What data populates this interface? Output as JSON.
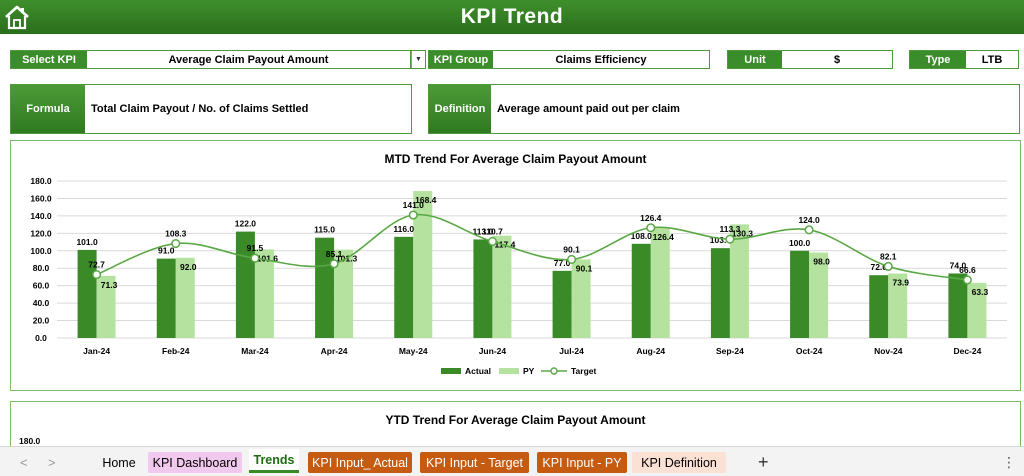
{
  "header": {
    "title": "KPI Trend",
    "home_icon": "home-icon"
  },
  "selectors": {
    "kpi_label": "Select KPI",
    "kpi_value": "Average Claim Payout Amount",
    "group_label": "KPI Group",
    "group_value": "Claims Efficiency",
    "unit_label": "Unit",
    "unit_value": "$",
    "type_label": "Type",
    "type_value": "LTB"
  },
  "info": {
    "formula_label": "Formula",
    "formula_value": "Total Claim Payout / No. of Claims Settled",
    "definition_label": "Definition",
    "definition_value": "Average amount paid out per claim"
  },
  "chart_data": [
    {
      "type": "bar",
      "title": "MTD Trend For Average Claim Payout Amount",
      "categories": [
        "Jan-24",
        "Feb-24",
        "Mar-24",
        "Apr-24",
        "May-24",
        "Jun-24",
        "Jul-24",
        "Aug-24",
        "Sep-24",
        "Oct-24",
        "Nov-24",
        "Dec-24"
      ],
      "series": [
        {
          "name": "Actual",
          "type": "bar",
          "color": "#3a8a28",
          "values": [
            101.0,
            91.0,
            122.0,
            115.0,
            116.0,
            113.0,
            77.0,
            108.0,
            103.0,
            100.0,
            72.0,
            74.0
          ]
        },
        {
          "name": "PY",
          "type": "bar",
          "color": "#b5e29e",
          "values": [
            71.3,
            92.0,
            101.6,
            101.3,
            168.4,
            117.4,
            90.1,
            126.4,
            130.3,
            98.0,
            73.9,
            63.3
          ]
        },
        {
          "name": "Target",
          "type": "line",
          "color": "#5aa845",
          "values": [
            72.7,
            108.3,
            91.5,
            85.1,
            141.0,
            110.7,
            90.1,
            126.4,
            113.3,
            124.0,
            82.1,
            66.6
          ]
        }
      ],
      "y_ticks": [
        "0.0",
        "20.0",
        "40.0",
        "60.0",
        "80.0",
        "100.0",
        "120.0",
        "140.0",
        "160.0",
        "180.0"
      ],
      "ylim": [
        0,
        180
      ],
      "legend_position": "bottom",
      "grid": true
    },
    {
      "type": "bar",
      "title": "YTD Trend For Average Claim Payout Amount",
      "y_ticks": [
        "180.0"
      ],
      "ylim": [
        0,
        180
      ]
    }
  ],
  "sheet_tabs": [
    {
      "label": "Home",
      "color": ""
    },
    {
      "label": "KPI Dashboard",
      "color": "#f2c9ee"
    },
    {
      "label": "Trends",
      "color": ""
    },
    {
      "label": "KPI Input_ Actual",
      "color": "#c55a11"
    },
    {
      "label": "KPI Input - Target",
      "color": "#c55a11"
    },
    {
      "label": "KPI Input - PY",
      "color": "#c55a11"
    },
    {
      "label": "KPI Definition",
      "color": "#fbe0d4"
    }
  ],
  "sheet_nav": {
    "add_symbol": "+",
    "menu_symbol": "⋮",
    "prev_symbol": "<",
    "next_symbol": ">"
  }
}
